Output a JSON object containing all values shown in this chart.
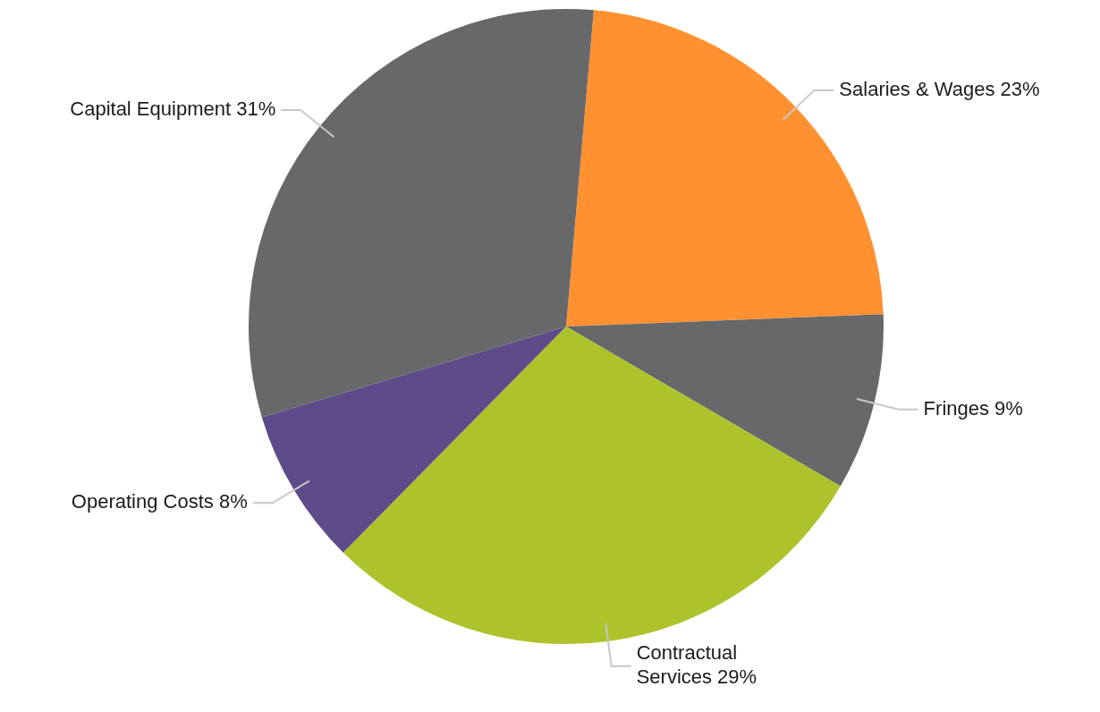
{
  "chart_data": {
    "type": "pie",
    "categories": [
      "Salaries & Wages",
      "Fringes",
      "Contractual Services",
      "Operating Costs",
      "Capital Equipment"
    ],
    "values": [
      23,
      9,
      29,
      8,
      31
    ],
    "value_labels": [
      "23%",
      "9%",
      "29%",
      "8%",
      "31%"
    ],
    "colors": [
      "#ff9130",
      "#67686a",
      "#aec22c",
      "#5e4b8a",
      "#67686a"
    ],
    "legend": false
  }
}
